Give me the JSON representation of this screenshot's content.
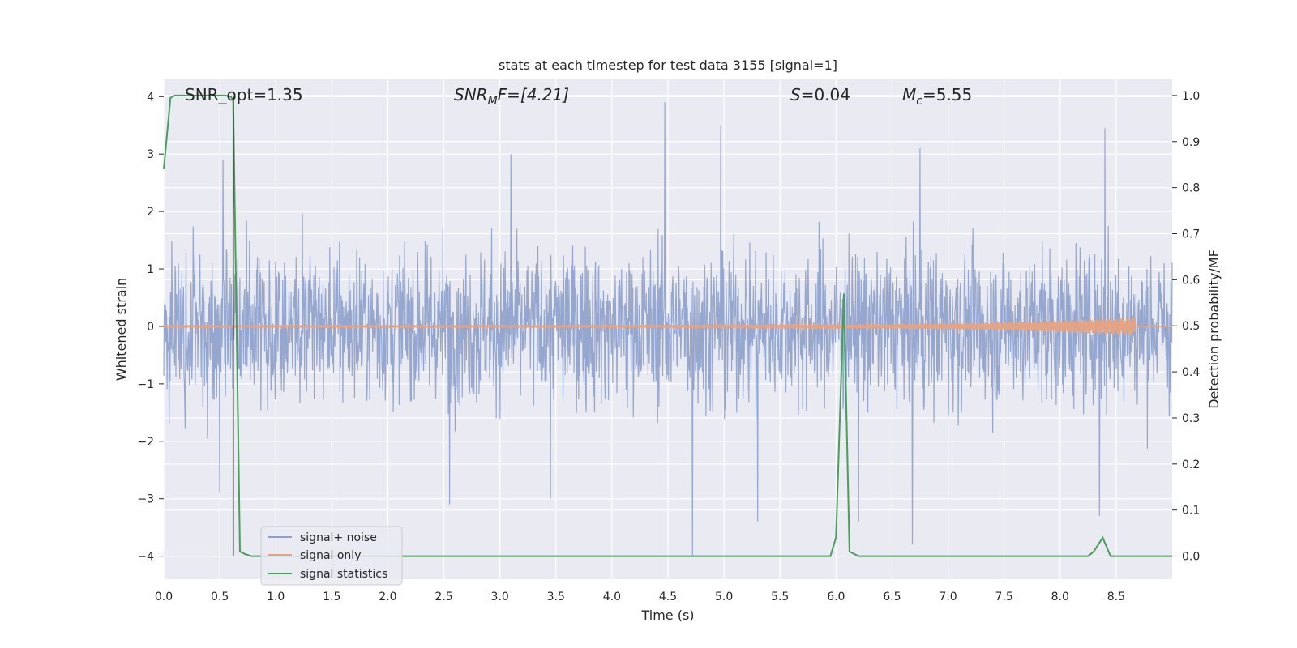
{
  "chart_data": {
    "type": "line",
    "title": "stats at each timestep for test data 3155 [signal=1]",
    "xlabel": "Time (s)",
    "ylabel_left": "Whitened strain",
    "ylabel_right": "Detection probability/MF",
    "xlim": [
      0,
      9.0
    ],
    "ylim_left": [
      -4.4,
      4.3
    ],
    "ylim_right": [
      -0.05,
      1.035
    ],
    "x_ticks": [
      "0.0",
      "0.5",
      "1.0",
      "1.5",
      "2.0",
      "2.5",
      "3.0",
      "3.5",
      "4.0",
      "4.5",
      "5.0",
      "5.5",
      "6.0",
      "6.5",
      "7.0",
      "7.5",
      "8.0",
      "8.5"
    ],
    "y_left_ticks": [
      4,
      3,
      2,
      1,
      0,
      -1,
      -2,
      -3,
      -4
    ],
    "y_left_tick_labels": [
      "4",
      "3",
      "2",
      "1",
      "0",
      "−1",
      "−2",
      "−3",
      "−4"
    ],
    "y_right_ticks": [
      "1.0",
      "0.9",
      "0.8",
      "0.7",
      "0.6",
      "0.5",
      "0.4",
      "0.3",
      "0.2",
      "0.1",
      "0.0"
    ],
    "grid": true,
    "legend_position": "lower-left",
    "annotations": {
      "snr_opt": "SNR_opt=1.35",
      "snr_mf_main": "SNR",
      "snr_mf_sub": "M",
      "snr_mf_rest": "F=[4.21]",
      "s_main": "S",
      "s_rest": "=0.04",
      "mc_main": "M",
      "mc_sub": "c",
      "mc_rest": "=5.55"
    },
    "vertical_marker_x": 0.62,
    "series": [
      {
        "name": "signal+ noise",
        "color": "#8da0cb",
        "axis": "left",
        "envelope_upper": 1.5,
        "envelope_lower": -1.6,
        "notable_peaks": [
          {
            "x": 0.05,
            "y": -1.7
          },
          {
            "x": 0.53,
            "y": 2.9
          },
          {
            "x": 0.5,
            "y": -2.9
          },
          {
            "x": 2.55,
            "y": -3.1
          },
          {
            "x": 3.1,
            "y": 3.0
          },
          {
            "x": 3.45,
            "y": -3.0
          },
          {
            "x": 4.47,
            "y": 3.9
          },
          {
            "x": 4.72,
            "y": -4.0
          },
          {
            "x": 4.97,
            "y": 3.5
          },
          {
            "x": 5.3,
            "y": -3.4
          },
          {
            "x": 6.2,
            "y": -3.4
          },
          {
            "x": 6.68,
            "y": -3.8
          },
          {
            "x": 6.75,
            "y": 3.1
          },
          {
            "x": 8.35,
            "y": -3.3
          },
          {
            "x": 8.4,
            "y": 3.45
          }
        ]
      },
      {
        "name": "signal only",
        "color": "#e5a383",
        "axis": "left",
        "chirp_end_x": 8.67,
        "chirp_end_amplitude": 0.15
      },
      {
        "name": "signal statistics",
        "color": "#4a9e5c",
        "axis": "right",
        "x": [
          0,
          0.06,
          0.1,
          0.2,
          0.3,
          0.4,
          0.5,
          0.55,
          0.6,
          0.62,
          0.68,
          0.72,
          0.78,
          1.0,
          2.0,
          3.0,
          4.0,
          5.0,
          5.5,
          5.95,
          6.0,
          6.07,
          6.12,
          6.2,
          7.0,
          8.0,
          8.25,
          8.3,
          8.38,
          8.45,
          9.0
        ],
        "values": [
          0.84,
          0.995,
          1.0,
          1.0,
          1.0,
          1.0,
          1.0,
          1.0,
          0.997,
          0.99,
          0.01,
          0.005,
          0.0,
          0.0,
          0.0,
          0.0,
          0.0,
          0.0,
          0.0,
          0.0,
          0.04,
          0.57,
          0.01,
          0.0,
          0.0,
          0.0,
          0.0,
          0.01,
          0.04,
          0.0,
          0.0
        ]
      }
    ]
  }
}
